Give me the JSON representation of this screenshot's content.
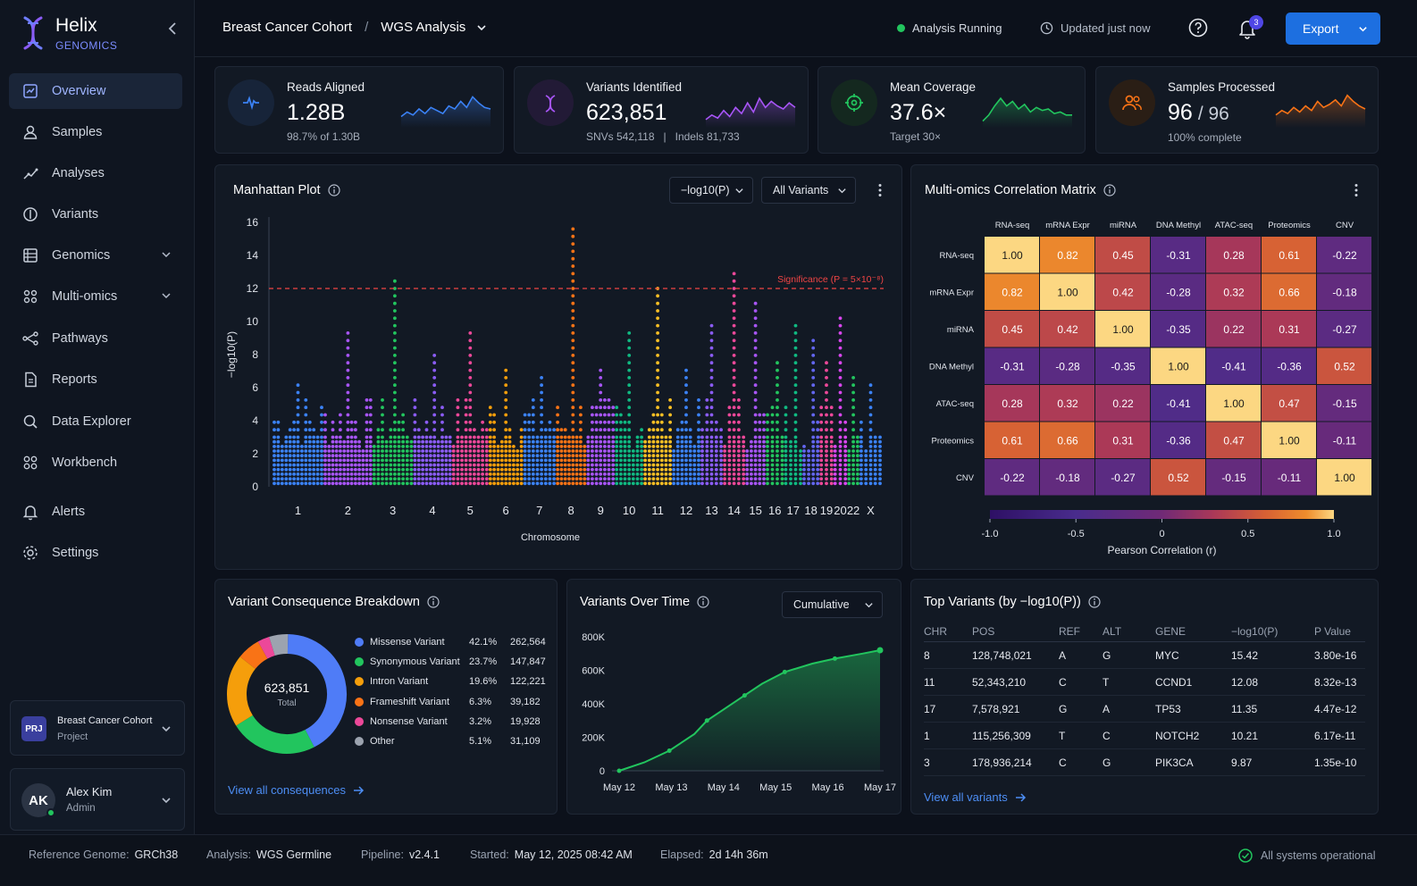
{
  "brand": {
    "name": "Helix",
    "sub": "GENOMICS"
  },
  "nav": [
    {
      "label": "Overview",
      "icon": "overview-icon",
      "active": true
    },
    {
      "label": "Samples",
      "icon": "samples-icon"
    },
    {
      "label": "Analyses",
      "icon": "analyses-icon"
    },
    {
      "label": "Variants",
      "icon": "variants-icon"
    },
    {
      "label": "Genomics",
      "icon": "genomics-icon",
      "expand": true
    },
    {
      "label": "Multi-omics",
      "icon": "multiomics-icon",
      "expand": true
    },
    {
      "label": "Pathways",
      "icon": "pathways-icon"
    },
    {
      "label": "Reports",
      "icon": "reports-icon"
    },
    {
      "label": "Data Explorer",
      "icon": "search-icon"
    },
    {
      "label": "Workbench",
      "icon": "workbench-icon"
    },
    {
      "label": "Alerts",
      "icon": "bell-icon"
    },
    {
      "label": "Settings",
      "icon": "gear-icon"
    }
  ],
  "project": {
    "badge": "PRJ",
    "name": "Breast Cancer Cohort",
    "sub": "Project"
  },
  "user": {
    "initials": "AK",
    "name": "Alex Kim",
    "role": "Admin"
  },
  "header": {
    "crumb1": "Breast Cancer Cohort",
    "crumb_sep": "/",
    "crumb2": "WGS Analysis",
    "status": "Analysis Running",
    "updated": "Updated just now",
    "notif_count": "3",
    "export": "Export"
  },
  "kpis": [
    {
      "label": "Reads Aligned",
      "value": "1.28B",
      "sub": "98.7% of 1.30B",
      "color": "#3b82f6",
      "spark": [
        0.25,
        0.4,
        0.3,
        0.5,
        0.35,
        0.55,
        0.45,
        0.35,
        0.6,
        0.5,
        0.75,
        0.55,
        0.9,
        0.7,
        0.55,
        0.5
      ]
    },
    {
      "label": "Variants Identified",
      "value": "623,851",
      "sub": "SNVs 542,118   |   Indels 81,733",
      "color": "#a855f7",
      "spark": [
        0.15,
        0.3,
        0.2,
        0.45,
        0.25,
        0.55,
        0.35,
        0.7,
        0.4,
        0.85,
        0.55,
        0.75,
        0.6,
        0.5,
        0.7,
        0.55
      ]
    },
    {
      "label": "Mean Coverage",
      "value": "37.6×",
      "sub": "Target 30×",
      "color": "#22c55e",
      "spark": [
        0.1,
        0.3,
        0.6,
        0.85,
        0.6,
        0.75,
        0.5,
        0.65,
        0.4,
        0.55,
        0.45,
        0.5,
        0.35,
        0.4,
        0.3,
        0.3
      ]
    },
    {
      "label": "Samples Processed",
      "value": "96",
      "value2": "/ 96",
      "sub": "100% complete",
      "color": "#f97316",
      "spark": [
        0.3,
        0.45,
        0.35,
        0.55,
        0.4,
        0.6,
        0.45,
        0.75,
        0.55,
        0.65,
        0.8,
        0.6,
        0.95,
        0.75,
        0.6,
        0.5
      ]
    }
  ],
  "manhattan": {
    "title": "Manhattan Plot",
    "scale": "−log10(P)",
    "filter": "All Variants",
    "chart_data": {
      "type": "scatter",
      "xlabel": "Chromosome",
      "ylabel": "−log10(P)",
      "ylim": [
        0,
        16
      ],
      "yticks": [
        "0",
        "2",
        "4",
        "6",
        "8",
        "10",
        "12",
        "14",
        "16"
      ],
      "threshold": {
        "y": 12,
        "label": "Significance (P = 5×10⁻⁸)"
      },
      "chromosomes": [
        "1",
        "2",
        "3",
        "4",
        "5",
        "6",
        "7",
        "8",
        "9",
        "10",
        "11",
        "12",
        "13",
        "14",
        "15",
        "16",
        "17",
        "18",
        "19",
        "20",
        "22",
        "X"
      ],
      "peaks": [
        6.5,
        9.5,
        12.5,
        8.3,
        9.5,
        7.5,
        7.0,
        16.0,
        7.2,
        9.5,
        12.0,
        7.5,
        10.0,
        13.0,
        11.5,
        7.8,
        9.8,
        9.0,
        7.8,
        10.5,
        7.0,
        6.5
      ],
      "colors": [
        "#3b82f6",
        "#a855f7",
        "#22c55e",
        "#8b5cf6",
        "#ec4899",
        "#f59e0b",
        "#3b82f6",
        "#f97316",
        "#a855f7",
        "#10b981",
        "#fbbf24",
        "#3b82f6",
        "#8b5cf6",
        "#ec4899",
        "#a855f7",
        "#22c55e",
        "#10b981",
        "#6366f1",
        "#ec4899",
        "#d946ef",
        "#22c55e",
        "#3b82f6"
      ]
    }
  },
  "matrix": {
    "title": "Multi-omics Correlation Matrix",
    "chart_data": {
      "type": "heatmap",
      "labels": [
        "RNA-seq",
        "mRNA Expr",
        "miRNA",
        "DNA Methyl",
        "ATAC-seq",
        "Proteomics",
        "CNV"
      ],
      "values": [
        [
          1.0,
          0.82,
          0.45,
          -0.31,
          0.28,
          0.61,
          -0.22
        ],
        [
          0.82,
          1.0,
          0.42,
          -0.28,
          0.32,
          0.66,
          -0.18
        ],
        [
          0.45,
          0.42,
          1.0,
          -0.35,
          0.22,
          0.31,
          -0.27
        ],
        [
          -0.31,
          -0.28,
          -0.35,
          1.0,
          -0.41,
          -0.36,
          0.52
        ],
        [
          0.28,
          0.32,
          0.22,
          -0.41,
          1.0,
          0.47,
          -0.15
        ],
        [
          0.61,
          0.66,
          0.31,
          -0.36,
          0.47,
          1.0,
          -0.11
        ],
        [
          -0.22,
          -0.18,
          -0.27,
          0.52,
          -0.15,
          -0.11,
          1.0
        ]
      ],
      "colorbar_ticks": [
        "-1.0",
        "-0.5",
        "0",
        "0.5",
        "1.0"
      ],
      "colorbar_label": "Pearson Correlation (r)"
    }
  },
  "consequence": {
    "title": "Variant Consequence Breakdown",
    "total": "623,851",
    "total_label": "Total",
    "link": "View all consequences",
    "chart_data": {
      "type": "pie",
      "items": [
        {
          "name": "Missense Variant",
          "pct": "42.1%",
          "count": "262,564",
          "value": 42.1,
          "color": "#4f7cf7"
        },
        {
          "name": "Synonymous Variant",
          "pct": "23.7%",
          "count": "147,847",
          "value": 23.7,
          "color": "#22c55e"
        },
        {
          "name": "Intron Variant",
          "pct": "19.6%",
          "count": "122,221",
          "value": 19.6,
          "color": "#f59e0b"
        },
        {
          "name": "Frameshift Variant",
          "pct": "6.3%",
          "count": "39,182",
          "value": 6.3,
          "color": "#f97316"
        },
        {
          "name": "Nonsense Variant",
          "pct": "3.2%",
          "count": "19,928",
          "value": 3.2,
          "color": "#ec4899"
        },
        {
          "name": "Other",
          "pct": "5.1%",
          "count": "31,109",
          "value": 5.1,
          "color": "#9ca3af"
        }
      ]
    }
  },
  "timeline": {
    "title": "Variants Over Time",
    "mode": "Cumulative",
    "chart_data": {
      "type": "area",
      "ylim": [
        0,
        800000
      ],
      "yticks": [
        "0",
        "200K",
        "400K",
        "600K",
        "800K"
      ],
      "xticks": [
        "May 12",
        "May 13",
        "May 14",
        "May 15",
        "May 16",
        "May 17"
      ],
      "x": [
        0,
        0.5,
        1,
        1.5,
        1.75,
        2,
        2.5,
        2.85,
        3.3,
        3.85,
        4.3,
        4.85,
        5.2
      ],
      "y": [
        0,
        50000,
        120000,
        220000,
        300000,
        350000,
        450000,
        520000,
        590000,
        640000,
        670000,
        700000,
        720000
      ]
    }
  },
  "top": {
    "title": "Top Variants (by −log10(P))",
    "link": "View all variants",
    "headers": [
      "CHR",
      "POS",
      "REF",
      "ALT",
      "GENE",
      "−log10(P)",
      "P Value"
    ],
    "rows": [
      [
        "8",
        "128,748,021",
        "A",
        "G",
        "MYC",
        "15.42",
        "3.80e-16"
      ],
      [
        "11",
        "52,343,210",
        "C",
        "T",
        "CCND1",
        "12.08",
        "8.32e-13"
      ],
      [
        "17",
        "7,578,921",
        "G",
        "A",
        "TP53",
        "11.35",
        "4.47e-12"
      ],
      [
        "1",
        "115,256,309",
        "T",
        "C",
        "NOTCH2",
        "10.21",
        "6.17e-11"
      ],
      [
        "3",
        "178,936,214",
        "C",
        "G",
        "PIK3CA",
        "9.87",
        "1.35e-10"
      ]
    ]
  },
  "footer": {
    "genome_label": "Reference Genome:",
    "genome": "GRCh38",
    "analysis_label": "Analysis:",
    "analysis": "WGS Germline",
    "pipeline_label": "Pipeline:",
    "pipeline": "v2.4.1",
    "started_label": "Started:",
    "started": "May 12, 2025 08:42 AM",
    "elapsed_label": "Elapsed:",
    "elapsed": "2d 14h 36m",
    "health": "All systems operational"
  }
}
